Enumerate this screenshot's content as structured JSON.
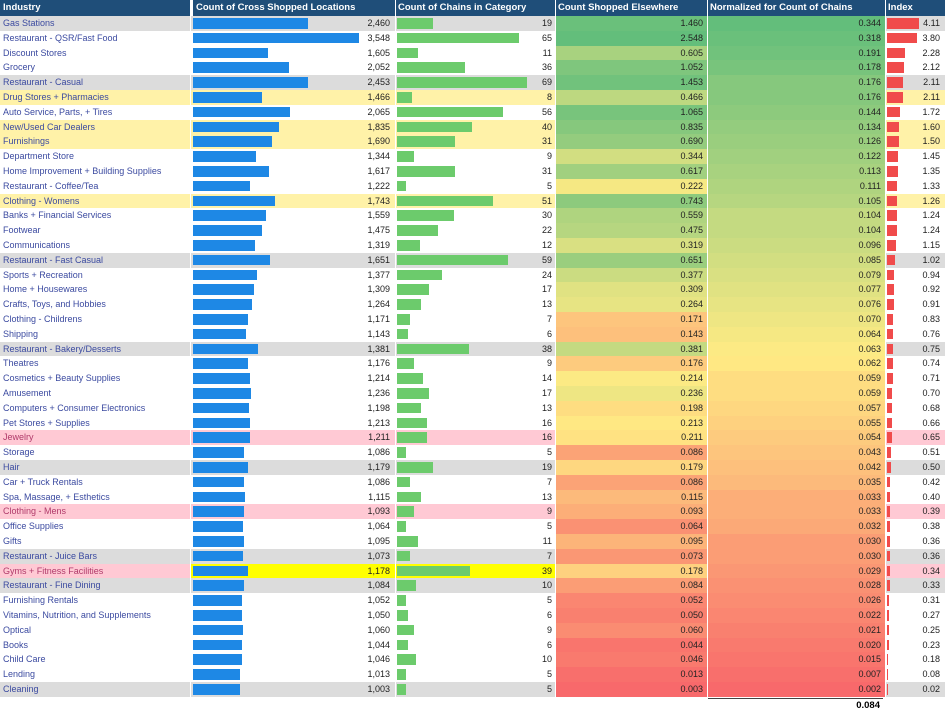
{
  "chart_data": {
    "type": "table",
    "columns": [
      "Industry",
      "Count of Cross Shopped Locations",
      "Count of Chains in Category",
      "Count Shopped Elsewhere",
      "Normalized for Count of Chains",
      "Index"
    ],
    "rows": [
      {
        "industry": "Gas Stations",
        "cross": "2,460",
        "cross_v": 2460,
        "chains": 19,
        "elsewhere": "1.460",
        "els_v": 1.46,
        "norm": "0.344",
        "norm_v": 0.344,
        "index": "4.11",
        "idx_v": 4.11,
        "hl": "alt"
      },
      {
        "industry": "Restaurant - QSR/Fast Food",
        "cross": "3,548",
        "cross_v": 3548,
        "chains": 65,
        "elsewhere": "2.548",
        "els_v": 2.548,
        "norm": "0.318",
        "norm_v": 0.318,
        "index": "3.80",
        "idx_v": 3.8,
        "hl": ""
      },
      {
        "industry": "Discount Stores",
        "cross": "1,605",
        "cross_v": 1605,
        "chains": 11,
        "elsewhere": "0.605",
        "els_v": 0.605,
        "norm": "0.191",
        "norm_v": 0.191,
        "index": "2.28",
        "idx_v": 2.28,
        "hl": ""
      },
      {
        "industry": "Grocery",
        "cross": "2,052",
        "cross_v": 2052,
        "chains": 36,
        "elsewhere": "1.052",
        "els_v": 1.052,
        "norm": "0.178",
        "norm_v": 0.178,
        "index": "2.12",
        "idx_v": 2.12,
        "hl": ""
      },
      {
        "industry": "Restaurant - Casual",
        "cross": "2,453",
        "cross_v": 2453,
        "chains": 69,
        "elsewhere": "1.453",
        "els_v": 1.453,
        "norm": "0.176",
        "norm_v": 0.176,
        "index": "2.11",
        "idx_v": 2.11,
        "hl": "alt"
      },
      {
        "industry": "Drug Stores + Pharmacies",
        "cross": "1,466",
        "cross_v": 1466,
        "chains": 8,
        "elsewhere": "0.466",
        "els_v": 0.466,
        "norm": "0.176",
        "norm_v": 0.176,
        "index": "2.11",
        "idx_v": 2.11,
        "hl": "yel"
      },
      {
        "industry": "Auto Service, Parts, + Tires",
        "cross": "2,065",
        "cross_v": 2065,
        "chains": 56,
        "elsewhere": "1.065",
        "els_v": 1.065,
        "norm": "0.144",
        "norm_v": 0.144,
        "index": "1.72",
        "idx_v": 1.72,
        "hl": ""
      },
      {
        "industry": "New/Used Car Dealers",
        "cross": "1,835",
        "cross_v": 1835,
        "chains": 40,
        "elsewhere": "0.835",
        "els_v": 0.835,
        "norm": "0.134",
        "norm_v": 0.134,
        "index": "1.60",
        "idx_v": 1.6,
        "hl": "yel"
      },
      {
        "industry": "Furnishings",
        "cross": "1,690",
        "cross_v": 1690,
        "chains": 31,
        "elsewhere": "0.690",
        "els_v": 0.69,
        "norm": "0.126",
        "norm_v": 0.126,
        "index": "1.50",
        "idx_v": 1.5,
        "hl": "yel"
      },
      {
        "industry": "Department Store",
        "cross": "1,344",
        "cross_v": 1344,
        "chains": 9,
        "elsewhere": "0.344",
        "els_v": 0.344,
        "norm": "0.122",
        "norm_v": 0.122,
        "index": "1.45",
        "idx_v": 1.45,
        "hl": ""
      },
      {
        "industry": "Home Improvement + Building Supplies",
        "cross": "1,617",
        "cross_v": 1617,
        "chains": 31,
        "elsewhere": "0.617",
        "els_v": 0.617,
        "norm": "0.113",
        "norm_v": 0.113,
        "index": "1.35",
        "idx_v": 1.35,
        "hl": ""
      },
      {
        "industry": "Restaurant - Coffee/Tea",
        "cross": "1,222",
        "cross_v": 1222,
        "chains": 5,
        "elsewhere": "0.222",
        "els_v": 0.222,
        "norm": "0.111",
        "norm_v": 0.111,
        "index": "1.33",
        "idx_v": 1.33,
        "hl": ""
      },
      {
        "industry": "Clothing - Womens",
        "cross": "1,743",
        "cross_v": 1743,
        "chains": 51,
        "elsewhere": "0.743",
        "els_v": 0.743,
        "norm": "0.105",
        "norm_v": 0.105,
        "index": "1.26",
        "idx_v": 1.26,
        "hl": "yel"
      },
      {
        "industry": "Banks + Financial Services",
        "cross": "1,559",
        "cross_v": 1559,
        "chains": 30,
        "elsewhere": "0.559",
        "els_v": 0.559,
        "norm": "0.104",
        "norm_v": 0.104,
        "index": "1.24",
        "idx_v": 1.24,
        "hl": ""
      },
      {
        "industry": "Footwear",
        "cross": "1,475",
        "cross_v": 1475,
        "chains": 22,
        "elsewhere": "0.475",
        "els_v": 0.475,
        "norm": "0.104",
        "norm_v": 0.104,
        "index": "1.24",
        "idx_v": 1.24,
        "hl": ""
      },
      {
        "industry": "Communications",
        "cross": "1,319",
        "cross_v": 1319,
        "chains": 12,
        "elsewhere": "0.319",
        "els_v": 0.319,
        "norm": "0.096",
        "norm_v": 0.096,
        "index": "1.15",
        "idx_v": 1.15,
        "hl": ""
      },
      {
        "industry": "Restaurant - Fast Casual",
        "cross": "1,651",
        "cross_v": 1651,
        "chains": 59,
        "elsewhere": "0.651",
        "els_v": 0.651,
        "norm": "0.085",
        "norm_v": 0.085,
        "index": "1.02",
        "idx_v": 1.02,
        "hl": "alt"
      },
      {
        "industry": "Sports + Recreation",
        "cross": "1,377",
        "cross_v": 1377,
        "chains": 24,
        "elsewhere": "0.377",
        "els_v": 0.377,
        "norm": "0.079",
        "norm_v": 0.079,
        "index": "0.94",
        "idx_v": 0.94,
        "hl": ""
      },
      {
        "industry": "Home + Housewares",
        "cross": "1,309",
        "cross_v": 1309,
        "chains": 17,
        "elsewhere": "0.309",
        "els_v": 0.309,
        "norm": "0.077",
        "norm_v": 0.077,
        "index": "0.92",
        "idx_v": 0.92,
        "hl": ""
      },
      {
        "industry": "Crafts, Toys, and Hobbies",
        "cross": "1,264",
        "cross_v": 1264,
        "chains": 13,
        "elsewhere": "0.264",
        "els_v": 0.264,
        "norm": "0.076",
        "norm_v": 0.076,
        "index": "0.91",
        "idx_v": 0.91,
        "hl": ""
      },
      {
        "industry": "Clothing - Childrens",
        "cross": "1,171",
        "cross_v": 1171,
        "chains": 7,
        "elsewhere": "0.171",
        "els_v": 0.171,
        "norm": "0.070",
        "norm_v": 0.07,
        "index": "0.83",
        "idx_v": 0.83,
        "hl": ""
      },
      {
        "industry": "Shipping",
        "cross": "1,143",
        "cross_v": 1143,
        "chains": 6,
        "elsewhere": "0.143",
        "els_v": 0.143,
        "norm": "0.064",
        "norm_v": 0.064,
        "index": "0.76",
        "idx_v": 0.76,
        "hl": ""
      },
      {
        "industry": "Restaurant - Bakery/Desserts",
        "cross": "1,381",
        "cross_v": 1381,
        "chains": 38,
        "elsewhere": "0.381",
        "els_v": 0.381,
        "norm": "0.063",
        "norm_v": 0.063,
        "index": "0.75",
        "idx_v": 0.75,
        "hl": "alt"
      },
      {
        "industry": "Theatres",
        "cross": "1,176",
        "cross_v": 1176,
        "chains": 9,
        "elsewhere": "0.176",
        "els_v": 0.176,
        "norm": "0.062",
        "norm_v": 0.062,
        "index": "0.74",
        "idx_v": 0.74,
        "hl": ""
      },
      {
        "industry": "Cosmetics + Beauty Supplies",
        "cross": "1,214",
        "cross_v": 1214,
        "chains": 14,
        "elsewhere": "0.214",
        "els_v": 0.214,
        "norm": "0.059",
        "norm_v": 0.059,
        "index": "0.71",
        "idx_v": 0.71,
        "hl": ""
      },
      {
        "industry": "Amusement",
        "cross": "1,236",
        "cross_v": 1236,
        "chains": 17,
        "elsewhere": "0.236",
        "els_v": 0.236,
        "norm": "0.059",
        "norm_v": 0.059,
        "index": "0.70",
        "idx_v": 0.7,
        "hl": ""
      },
      {
        "industry": "Computers + Consumer Electronics",
        "cross": "1,198",
        "cross_v": 1198,
        "chains": 13,
        "elsewhere": "0.198",
        "els_v": 0.198,
        "norm": "0.057",
        "norm_v": 0.057,
        "index": "0.68",
        "idx_v": 0.68,
        "hl": ""
      },
      {
        "industry": "Pet Stores + Supplies",
        "cross": "1,213",
        "cross_v": 1213,
        "chains": 16,
        "elsewhere": "0.213",
        "els_v": 0.213,
        "norm": "0.055",
        "norm_v": 0.055,
        "index": "0.66",
        "idx_v": 0.66,
        "hl": ""
      },
      {
        "industry": "Jewelry",
        "cross": "1,211",
        "cross_v": 1211,
        "chains": 16,
        "elsewhere": "0.211",
        "els_v": 0.211,
        "norm": "0.054",
        "norm_v": 0.054,
        "index": "0.65",
        "idx_v": 0.65,
        "hl": "pink"
      },
      {
        "industry": "Storage",
        "cross": "1,086",
        "cross_v": 1086,
        "chains": 5,
        "elsewhere": "0.086",
        "els_v": 0.086,
        "norm": "0.043",
        "norm_v": 0.043,
        "index": "0.51",
        "idx_v": 0.51,
        "hl": ""
      },
      {
        "industry": "Hair",
        "cross": "1,179",
        "cross_v": 1179,
        "chains": 19,
        "elsewhere": "0.179",
        "els_v": 0.179,
        "norm": "0.042",
        "norm_v": 0.042,
        "index": "0.50",
        "idx_v": 0.5,
        "hl": "alt"
      },
      {
        "industry": "Car + Truck Rentals",
        "cross": "1,086",
        "cross_v": 1086,
        "chains": 7,
        "elsewhere": "0.086",
        "els_v": 0.086,
        "norm": "0.035",
        "norm_v": 0.035,
        "index": "0.42",
        "idx_v": 0.42,
        "hl": ""
      },
      {
        "industry": "Spa, Massage, + Esthetics",
        "cross": "1,115",
        "cross_v": 1115,
        "chains": 13,
        "elsewhere": "0.115",
        "els_v": 0.115,
        "norm": "0.033",
        "norm_v": 0.033,
        "index": "0.40",
        "idx_v": 0.4,
        "hl": ""
      },
      {
        "industry": "Clothing - Mens",
        "cross": "1,093",
        "cross_v": 1093,
        "chains": 9,
        "elsewhere": "0.093",
        "els_v": 0.093,
        "norm": "0.033",
        "norm_v": 0.033,
        "index": "0.39",
        "idx_v": 0.39,
        "hl": "pink"
      },
      {
        "industry": "Office Supplies",
        "cross": "1,064",
        "cross_v": 1064,
        "chains": 5,
        "elsewhere": "0.064",
        "els_v": 0.064,
        "norm": "0.032",
        "norm_v": 0.032,
        "index": "0.38",
        "idx_v": 0.38,
        "hl": ""
      },
      {
        "industry": "Gifts",
        "cross": "1,095",
        "cross_v": 1095,
        "chains": 11,
        "elsewhere": "0.095",
        "els_v": 0.095,
        "norm": "0.030",
        "norm_v": 0.03,
        "index": "0.36",
        "idx_v": 0.36,
        "hl": ""
      },
      {
        "industry": "Restaurant - Juice Bars",
        "cross": "1,073",
        "cross_v": 1073,
        "chains": 7,
        "elsewhere": "0.073",
        "els_v": 0.073,
        "norm": "0.030",
        "norm_v": 0.03,
        "index": "0.36",
        "idx_v": 0.36,
        "hl": "alt"
      },
      {
        "industry": "Gyms + Fitness Facilities",
        "cross": "1,178",
        "cross_v": 1178,
        "chains": 39,
        "elsewhere": "0.178",
        "els_v": 0.178,
        "norm": "0.029",
        "norm_v": 0.029,
        "index": "0.34",
        "idx_v": 0.34,
        "hl": "pinkhl"
      },
      {
        "industry": "Restaurant - Fine Dining",
        "cross": "1,084",
        "cross_v": 1084,
        "chains": 10,
        "elsewhere": "0.084",
        "els_v": 0.084,
        "norm": "0.028",
        "norm_v": 0.028,
        "index": "0.33",
        "idx_v": 0.33,
        "hl": "alt"
      },
      {
        "industry": "Furnishing Rentals",
        "cross": "1,052",
        "cross_v": 1052,
        "chains": 5,
        "elsewhere": "0.052",
        "els_v": 0.052,
        "norm": "0.026",
        "norm_v": 0.026,
        "index": "0.31",
        "idx_v": 0.31,
        "hl": ""
      },
      {
        "industry": "Vitamins, Nutrition, and Supplements",
        "cross": "1,050",
        "cross_v": 1050,
        "chains": 6,
        "elsewhere": "0.050",
        "els_v": 0.05,
        "norm": "0.022",
        "norm_v": 0.022,
        "index": "0.27",
        "idx_v": 0.27,
        "hl": ""
      },
      {
        "industry": "Optical",
        "cross": "1,060",
        "cross_v": 1060,
        "chains": 9,
        "elsewhere": "0.060",
        "els_v": 0.06,
        "norm": "0.021",
        "norm_v": 0.021,
        "index": "0.25",
        "idx_v": 0.25,
        "hl": ""
      },
      {
        "industry": "Books",
        "cross": "1,044",
        "cross_v": 1044,
        "chains": 6,
        "elsewhere": "0.044",
        "els_v": 0.044,
        "norm": "0.020",
        "norm_v": 0.02,
        "index": "0.23",
        "idx_v": 0.23,
        "hl": ""
      },
      {
        "industry": "Child Care",
        "cross": "1,046",
        "cross_v": 1046,
        "chains": 10,
        "elsewhere": "0.046",
        "els_v": 0.046,
        "norm": "0.015",
        "norm_v": 0.015,
        "index": "0.18",
        "idx_v": 0.18,
        "hl": ""
      },
      {
        "industry": "Lending",
        "cross": "1,013",
        "cross_v": 1013,
        "chains": 5,
        "elsewhere": "0.013",
        "els_v": 0.013,
        "norm": "0.007",
        "norm_v": 0.007,
        "index": "0.08",
        "idx_v": 0.08,
        "hl": ""
      },
      {
        "industry": "Cleaning",
        "cross": "1,003",
        "cross_v": 1003,
        "chains": 5,
        "elsewhere": "0.003",
        "els_v": 0.003,
        "norm": "0.002",
        "norm_v": 0.002,
        "index": "0.02",
        "idx_v": 0.02,
        "hl": "alt"
      }
    ],
    "total_normalized": "0.084",
    "colors": {
      "header": "#1f4e79",
      "cross_bar": "#1e88e5",
      "chains_bar": "#6ccb6c",
      "index_bar": "#f04b4b",
      "heat_high": "#63be7b",
      "heat_mid": "#ffeb84",
      "heat_low": "#f8696b",
      "zebra": "#dcdcdc",
      "highlight_yellow": "#fff2a8",
      "highlight_pink": "#ffc9d4",
      "highlight_bright": "#ffff00"
    }
  }
}
